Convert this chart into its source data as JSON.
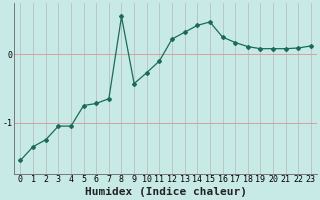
{
  "x": [
    0,
    1,
    2,
    3,
    4,
    5,
    6,
    7,
    8,
    9,
    10,
    11,
    12,
    13,
    14,
    15,
    16,
    17,
    18,
    19,
    20,
    21,
    22,
    23
  ],
  "y": [
    -1.55,
    -1.35,
    -1.25,
    -1.05,
    -1.05,
    -0.75,
    -0.72,
    -0.65,
    0.55,
    -0.43,
    -0.27,
    -0.1,
    0.22,
    0.32,
    0.42,
    0.47,
    0.25,
    0.17,
    0.11,
    0.08,
    0.08,
    0.08,
    0.09,
    0.12
  ],
  "line_color": "#1a6b5a",
  "marker": "D",
  "marker_size": 2.0,
  "line_width": 0.9,
  "xlabel": "Humidex (Indice chaleur)",
  "xlabel_fontsize": 8,
  "background_color": "#c8eae6",
  "grid_color_h": "#d4a0a0",
  "grid_color_v": "#b8b8b8",
  "tick_label_fontsize": 6,
  "yticks": [
    -1,
    0
  ],
  "ylim": [
    -1.75,
    0.75
  ],
  "xlim": [
    -0.5,
    23.5
  ],
  "spine_color": "#666666"
}
